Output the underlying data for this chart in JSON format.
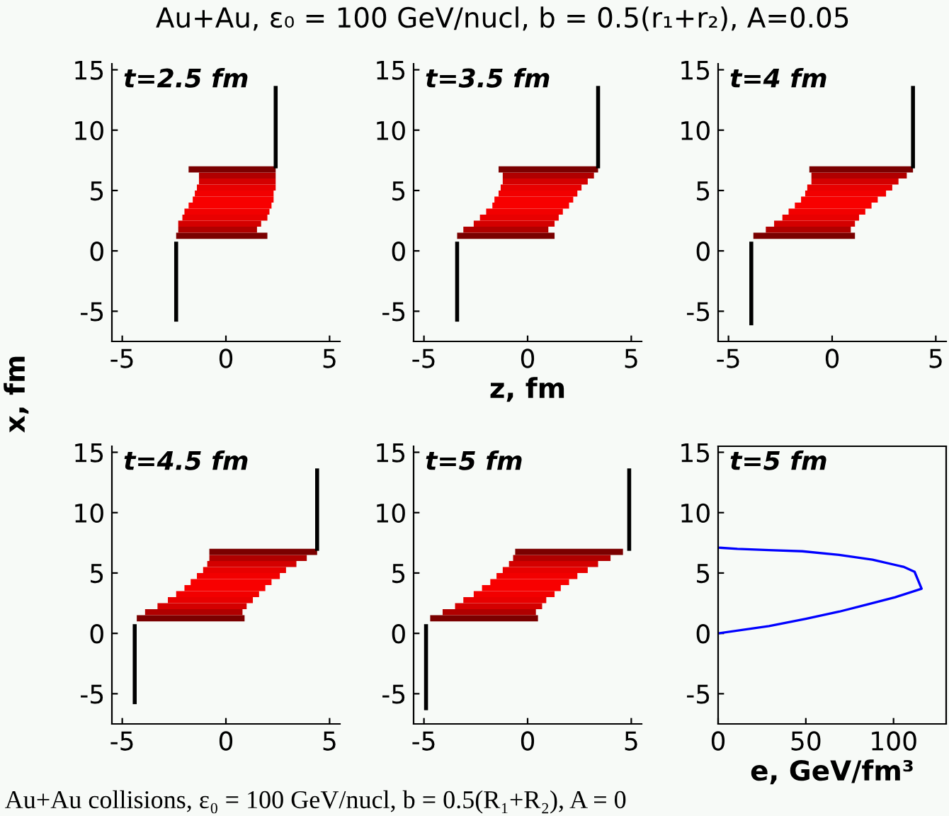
{
  "chart_data": [
    {
      "type": "bar",
      "orientation": "horizontal",
      "title": "Au+Au, ε₀ = 100 GeV/nucl, b = 0.5(r₁+r₂), A=0.05",
      "ylabel": "x, fm",
      "annotations": [
        "t=2.5 fm"
      ],
      "xlim": [
        -5.5,
        5.5
      ],
      "ylim": [
        -7.5,
        15.5
      ],
      "xticks": [
        -5,
        0,
        5
      ],
      "yticks": [
        -5,
        0,
        5,
        10,
        15
      ],
      "grid": false,
      "legend": false,
      "series": [
        {
          "type": "bar",
          "x": [
            1.25,
            1.75,
            2.25,
            2.75,
            3.25,
            3.75,
            4.25,
            4.75,
            5.25,
            5.75,
            6.25,
            6.75
          ],
          "base": [
            -2.4,
            -2.3,
            -2.3,
            -2.1,
            -2.0,
            -1.8,
            -1.6,
            -1.5,
            -1.4,
            -1.3,
            -1.3,
            -1.8
          ],
          "values": [
            4.4,
            3.8,
            4.0,
            4.1,
            4.1,
            4.0,
            3.9,
            3.8,
            3.8,
            3.7,
            3.7,
            4.2
          ],
          "colors": [
            "#7a0000",
            "#b00000",
            "#d40000",
            "#e80000",
            "#f20000",
            "#f80000",
            "#f80000",
            "#f20000",
            "#e80000",
            "#d40000",
            "#b00000",
            "#7a0000"
          ]
        },
        {
          "type": "line",
          "values": [
            -2.4,
            -2.4
          ],
          "x": [
            -5.7,
            0.6
          ],
          "color": "#000000"
        },
        {
          "type": "line",
          "values": [
            2.4,
            2.4
          ],
          "x": [
            7.0,
            13.5
          ],
          "color": "#000000"
        }
      ]
    },
    {
      "type": "bar",
      "orientation": "horizontal",
      "xlabel": "z, fm",
      "annotations": [
        "t=3.5 fm"
      ],
      "xlim": [
        -5.5,
        5.5
      ],
      "ylim": [
        -7.5,
        15.5
      ],
      "xticks": [
        -5,
        0,
        5
      ],
      "yticks": [
        -5,
        0,
        5,
        10,
        15
      ],
      "grid": false,
      "legend": false,
      "series": [
        {
          "type": "bar",
          "x": [
            1.25,
            1.75,
            2.25,
            2.75,
            3.25,
            3.75,
            4.25,
            4.75,
            5.25,
            5.75,
            6.25,
            6.75
          ],
          "base": [
            -3.4,
            -3.1,
            -2.6,
            -2.3,
            -2.0,
            -1.7,
            -1.6,
            -1.4,
            -1.3,
            -1.2,
            -1.2,
            -1.4
          ],
          "values": [
            4.7,
            4.1,
            3.9,
            3.8,
            3.7,
            3.7,
            3.8,
            3.8,
            3.9,
            4.1,
            4.4,
            4.8
          ],
          "colors": [
            "#7a0000",
            "#b00000",
            "#d40000",
            "#e80000",
            "#f20000",
            "#f80000",
            "#f80000",
            "#f20000",
            "#e80000",
            "#d40000",
            "#b00000",
            "#7a0000"
          ]
        },
        {
          "type": "line",
          "values": [
            -3.4,
            -3.4
          ],
          "x": [
            -5.7,
            0.6
          ],
          "color": "#000000"
        },
        {
          "type": "line",
          "values": [
            3.4,
            3.4
          ],
          "x": [
            7.0,
            13.5
          ],
          "color": "#000000"
        }
      ]
    },
    {
      "type": "bar",
      "orientation": "horizontal",
      "annotations": [
        "t=4 fm"
      ],
      "xlim": [
        -5.5,
        5.5
      ],
      "ylim": [
        -7.5,
        15.5
      ],
      "xticks": [
        -5,
        0,
        5
      ],
      "yticks": [
        -5,
        0,
        5,
        10,
        15
      ],
      "grid": false,
      "legend": false,
      "series": [
        {
          "type": "bar",
          "x": [
            1.25,
            1.75,
            2.25,
            2.75,
            3.25,
            3.75,
            4.25,
            4.75,
            5.25,
            5.75,
            6.25,
            6.75
          ],
          "base": [
            -3.8,
            -3.2,
            -2.8,
            -2.4,
            -2.1,
            -1.8,
            -1.5,
            -1.3,
            -1.2,
            -1.0,
            -1.0,
            -1.1
          ],
          "values": [
            4.9,
            4.1,
            3.9,
            3.7,
            3.7,
            3.7,
            3.7,
            3.9,
            4.1,
            4.2,
            4.6,
            5.0
          ],
          "colors": [
            "#7a0000",
            "#b00000",
            "#d40000",
            "#e80000",
            "#f20000",
            "#f80000",
            "#f80000",
            "#f20000",
            "#e80000",
            "#d40000",
            "#b00000",
            "#7a0000"
          ]
        },
        {
          "type": "line",
          "values": [
            -3.9,
            -3.9
          ],
          "x": [
            -6.0,
            0.6
          ],
          "color": "#000000"
        },
        {
          "type": "line",
          "values": [
            3.9,
            3.9
          ],
          "x": [
            7.0,
            13.5
          ],
          "color": "#000000"
        }
      ]
    },
    {
      "type": "bar",
      "orientation": "horizontal",
      "annotations": [
        "t=4.5 fm"
      ],
      "xlim": [
        -5.5,
        5.5
      ],
      "ylim": [
        -7.5,
        15.5
      ],
      "xticks": [
        -5,
        0,
        5
      ],
      "yticks": [
        -5,
        0,
        5,
        10,
        15
      ],
      "grid": false,
      "legend": false,
      "series": [
        {
          "type": "bar",
          "x": [
            1.25,
            1.75,
            2.25,
            2.75,
            3.25,
            3.75,
            4.25,
            4.75,
            5.25,
            5.75,
            6.25,
            6.75
          ],
          "base": [
            -4.3,
            -3.9,
            -3.3,
            -2.8,
            -2.4,
            -2.0,
            -1.7,
            -1.4,
            -1.1,
            -0.9,
            -0.8,
            -0.8
          ],
          "values": [
            5.2,
            4.7,
            4.3,
            4.1,
            4.0,
            3.9,
            3.9,
            4.0,
            4.0,
            4.3,
            4.7,
            5.2
          ],
          "colors": [
            "#7a0000",
            "#b00000",
            "#d40000",
            "#e80000",
            "#f20000",
            "#f80000",
            "#f80000",
            "#f20000",
            "#e80000",
            "#d40000",
            "#b00000",
            "#7a0000"
          ]
        },
        {
          "type": "line",
          "values": [
            -4.4,
            -4.4
          ],
          "x": [
            -5.7,
            0.6
          ],
          "color": "#000000"
        },
        {
          "type": "line",
          "values": [
            4.4,
            4.4
          ],
          "x": [
            7.0,
            13.5
          ],
          "color": "#000000"
        }
      ]
    },
    {
      "type": "bar",
      "orientation": "horizontal",
      "annotations": [
        "t=5 fm"
      ],
      "xlim": [
        -5.5,
        5.5
      ],
      "ylim": [
        -7.5,
        15.5
      ],
      "xticks": [
        -5,
        0,
        5
      ],
      "yticks": [
        -5,
        0,
        5,
        10,
        15
      ],
      "grid": false,
      "legend": false,
      "series": [
        {
          "type": "bar",
          "x": [
            1.25,
            1.75,
            2.25,
            2.75,
            3.25,
            3.75,
            4.25,
            4.75,
            5.25,
            5.75,
            6.25,
            6.75
          ],
          "base": [
            -4.7,
            -4.1,
            -3.5,
            -3.1,
            -2.6,
            -2.2,
            -1.8,
            -1.5,
            -1.2,
            -0.9,
            -0.7,
            -0.6
          ],
          "values": [
            5.2,
            4.5,
            4.2,
            4.0,
            3.9,
            3.8,
            3.8,
            3.9,
            4.1,
            4.3,
            4.7,
            5.2
          ],
          "colors": [
            "#7a0000",
            "#b00000",
            "#d40000",
            "#e80000",
            "#f20000",
            "#f80000",
            "#f80000",
            "#f20000",
            "#e80000",
            "#d40000",
            "#b00000",
            "#7a0000"
          ]
        },
        {
          "type": "line",
          "values": [
            -4.9,
            -4.9
          ],
          "x": [
            -6.2,
            0.6
          ],
          "color": "#000000"
        },
        {
          "type": "line",
          "values": [
            4.9,
            4.9
          ],
          "x": [
            7.0,
            13.5
          ],
          "color": "#000000"
        }
      ]
    },
    {
      "type": "line",
      "orientation": "horizontal",
      "xlabel": "e, GeV/fm³",
      "annotations": [
        "t=5 fm",
        "Au+Au collisions, ε₀ = 100 GeV/nucl, b = 0.5(R₁+R₂), A = 0"
      ],
      "xlim": [
        0,
        130
      ],
      "ylim": [
        -7.5,
        15.5
      ],
      "xticks": [
        0,
        50,
        100
      ],
      "yticks": [
        -5,
        0,
        5,
        10,
        15
      ],
      "grid": false,
      "legend": false,
      "series": [
        {
          "type": "line",
          "values": [
            0,
            29,
            50,
            69,
            85,
            101,
            116,
            112,
            106,
            88,
            69,
            48,
            29,
            11,
            0
          ],
          "x": [
            0.0,
            0.6,
            1.2,
            1.8,
            2.4,
            3.0,
            3.7,
            5.1,
            5.5,
            6.1,
            6.5,
            6.8,
            6.9,
            7.0,
            7.1
          ],
          "color": "#0000ff"
        }
      ]
    }
  ]
}
